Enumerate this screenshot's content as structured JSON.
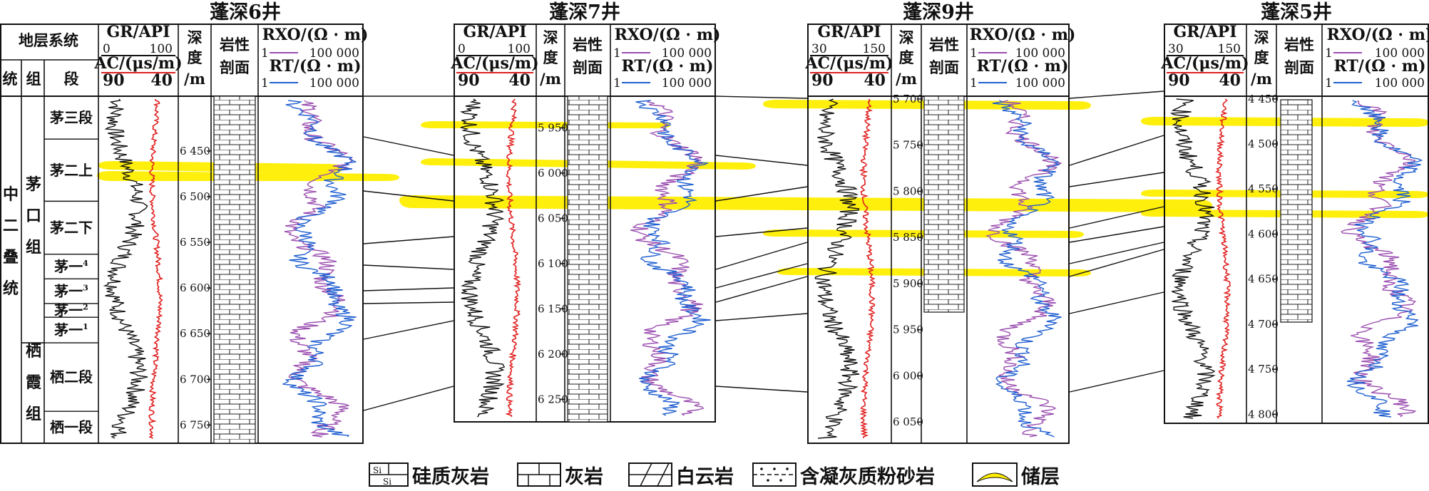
{
  "wells": [
    {
      "name": "蓬深6井",
      "strat_header": {
        "system": "地层系统",
        "tong": "统",
        "zu": "组",
        "duan": "段"
      },
      "gr": {
        "label": "GR/API",
        "min": "0",
        "max": "100"
      },
      "ac": {
        "label": "AC/(μs/m)",
        "left": "90",
        "right": "40"
      },
      "depth_label": [
        "深",
        "度",
        "/m"
      ],
      "litho_label": [
        "岩性",
        "剖面"
      ],
      "rxo": {
        "label": "RXO/(Ω · m)",
        "min": "1",
        "max": "100 000"
      },
      "rt": {
        "label": "RT/(Ω · m)",
        "min": "1",
        "max": "100 000"
      },
      "depth_ticks": [
        "6 450",
        "6 500",
        "6 550",
        "6 600",
        "6 650",
        "6 700",
        "6 750"
      ],
      "depth_range_m": [
        6390,
        6770
      ],
      "tong_labels": [
        "中",
        "二",
        "叠",
        "统"
      ],
      "zu_labels": [
        {
          "text": [
            "茅",
            "口",
            "组"
          ]
        },
        {
          "text": [
            "栖",
            "霞",
            "组"
          ]
        }
      ],
      "segments": [
        {
          "name": "茅三段",
          "top_m": 6390,
          "bottom_m": 6437
        },
        {
          "name": "茅二上",
          "top_m": 6437,
          "bottom_m": 6505
        },
        {
          "name": "茅二下",
          "top_m": 6505,
          "bottom_m": 6563
        },
        {
          "name": "茅一4",
          "top_m": 6563,
          "bottom_m": 6590
        },
        {
          "name": "茅一3",
          "top_m": 6590,
          "bottom_m": 6617
        },
        {
          "name": "茅一2",
          "top_m": 6617,
          "bottom_m": 6632
        },
        {
          "name": "茅一1",
          "top_m": 6632,
          "bottom_m": 6660
        },
        {
          "name": "栖二段",
          "top_m": 6660,
          "bottom_m": 6735
        },
        {
          "name": "栖一段",
          "top_m": 6735,
          "bottom_m": 6770
        }
      ],
      "segment_display": [
        {
          "base": "茅三段",
          "sup": ""
        },
        {
          "base": "茅二上",
          "sup": ""
        },
        {
          "base": "茅二下",
          "sup": ""
        },
        {
          "base": "茅一",
          "sup": "4"
        },
        {
          "base": "茅一",
          "sup": "3"
        },
        {
          "base": "茅一",
          "sup": "2"
        },
        {
          "base": "茅一",
          "sup": "1"
        },
        {
          "base": "栖二段",
          "sup": ""
        },
        {
          "base": "栖一段",
          "sup": ""
        }
      ]
    },
    {
      "name": "蓬深7井",
      "gr": {
        "label": "GR/API",
        "min": "0",
        "max": "100"
      },
      "ac": {
        "label": "AC/(μs/m)",
        "left": "90",
        "right": "40"
      },
      "depth_label": [
        "深",
        "度",
        "/m"
      ],
      "litho_label": [
        "岩性",
        "剖面"
      ],
      "rxo": {
        "label": "RXO/(Ω · m)",
        "min": "1",
        "max": "100 000"
      },
      "rt": {
        "label": "RT/(Ω · m)",
        "min": "1",
        "max": "100 000"
      },
      "depth_ticks": [
        "5 950",
        "6 000",
        "6 050",
        "6 100",
        "6 150",
        "6 200",
        "6 250"
      ],
      "depth_range_m": [
        5915,
        6275
      ]
    },
    {
      "name": "蓬深9井",
      "gr": {
        "label": "GR/API",
        "min": "30",
        "max": "150"
      },
      "ac": {
        "label": "AC/(μs/m)",
        "left": "90",
        "right": "40"
      },
      "depth_label": [
        "深",
        "度",
        "/m"
      ],
      "litho_label": [
        "岩性",
        "剖面"
      ],
      "rxo": {
        "label": "RXO/(Ω · m)",
        "min": "1",
        "max": "100 000"
      },
      "rt": {
        "label": "RT/(Ω · m)",
        "min": "1",
        "max": "100 000"
      },
      "depth_ticks": [
        "5 700",
        "5 750",
        "5 800",
        "5 850",
        "5 900",
        "5 950",
        "6 000",
        "6 050"
      ],
      "depth_range_m": [
        5697,
        6073
      ]
    },
    {
      "name": "蓬深5井",
      "gr": {
        "label": "GR/API",
        "min": "30",
        "max": "150"
      },
      "ac": {
        "label": "AC/(μs/m)",
        "left": "90",
        "right": "40"
      },
      "depth_label": [
        "深",
        "度",
        "/m"
      ],
      "litho_label": [
        "岩性",
        "剖面"
      ],
      "rxo": {
        "label": "RXO/(Ω · m)",
        "min": "1",
        "max": "100 000"
      },
      "rt": {
        "label": "RT/(Ω · m)",
        "min": "1",
        "max": "100 000"
      },
      "depth_ticks": [
        "4 450",
        "4 500",
        "4 550",
        "4 600",
        "4 650",
        "4 700",
        "4 750",
        "4 800"
      ],
      "depth_range_m": [
        4447,
        4810
      ]
    }
  ],
  "colors": {
    "gr": "#111111",
    "ac": "#e02020",
    "rxo": "#9b4fb0",
    "rt": "#1f5fd0",
    "reservoir": "#ffee00"
  },
  "legend": [
    {
      "icon": "siliceous-limestone",
      "label": "硅质灰岩"
    },
    {
      "icon": "limestone",
      "label": "灰岩"
    },
    {
      "icon": "dolomite",
      "label": "白云岩"
    },
    {
      "icon": "tuffaceous-siltstone",
      "label": "含凝灰质粉砂岩"
    },
    {
      "icon": "reservoir",
      "label": "储层"
    }
  ],
  "litho_marks": {
    "si": "Si"
  }
}
